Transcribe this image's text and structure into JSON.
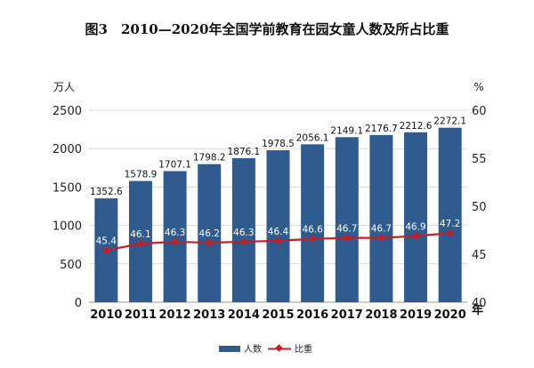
{
  "chart_data": {
    "type": "bar",
    "title": "图3　2010—2020年全国学前教育在园女童人数及所占比重",
    "categories": [
      "2010",
      "2011",
      "2012",
      "2013",
      "2014",
      "2015",
      "2016",
      "2017",
      "2018",
      "2019",
      "2020"
    ],
    "xunit": "年",
    "series": [
      {
        "name": "人数",
        "type": "bar",
        "axis": "left",
        "color": "#2f5b8f",
        "values": [
          1352.6,
          1578.9,
          1707.1,
          1798.2,
          1876.1,
          1978.5,
          2056.1,
          2149.1,
          2176.7,
          2212.6,
          2272.1
        ]
      },
      {
        "name": "比重",
        "type": "line",
        "axis": "right",
        "color": "#c0222a",
        "values": [
          45.4,
          46.1,
          46.3,
          46.2,
          46.3,
          46.4,
          46.6,
          46.7,
          46.7,
          46.9,
          47.2
        ]
      }
    ],
    "y_left": {
      "unit": "万人",
      "ylim": [
        0,
        2500
      ],
      "ticks": [
        0,
        500,
        1000,
        1500,
        2000,
        2500
      ]
    },
    "y_right": {
      "unit": "%",
      "ylim": [
        40,
        60
      ],
      "ticks": [
        40,
        45,
        50,
        55,
        60
      ]
    },
    "grid": true,
    "legend": "bottom-center"
  }
}
